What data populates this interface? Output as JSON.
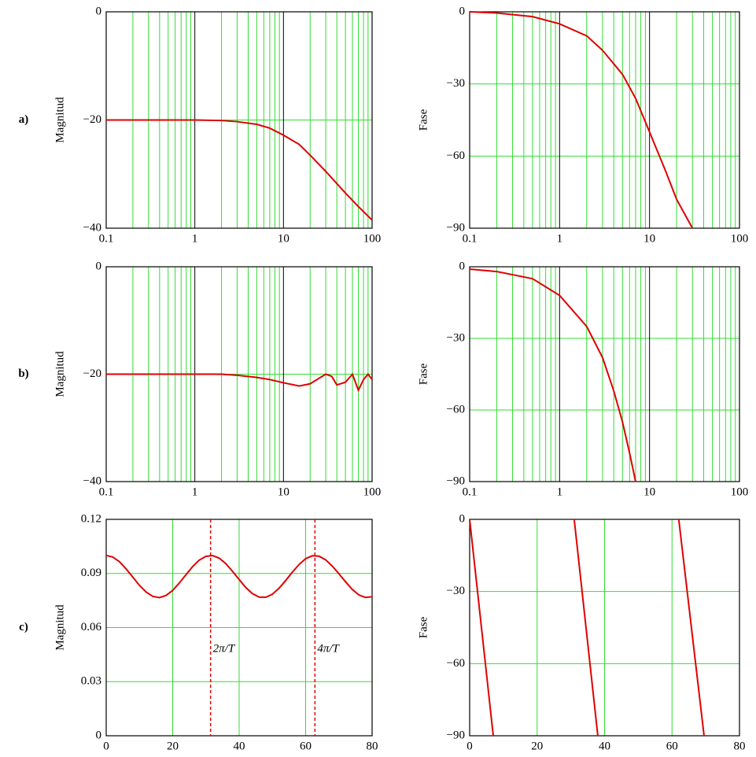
{
  "chart_data": [
    {
      "type": "line",
      "panel": "a)",
      "ylabel": "Magnitud",
      "xscale": "log",
      "minor_grid": true,
      "color": "#e00000",
      "xlim": [
        0.1,
        100
      ],
      "xticks": [
        0.1,
        1,
        10,
        100
      ],
      "ylim": [
        -40,
        0
      ],
      "yticks": [
        {
          "value": -40,
          "label": "−40"
        },
        {
          "value": -20,
          "label": "−20"
        },
        0
      ],
      "x": [
        0.1,
        0.2,
        0.5,
        1,
        2,
        3,
        5,
        7,
        10,
        15,
        20,
        30,
        50,
        70,
        100
      ],
      "values": [
        -20,
        -20,
        -20,
        -20,
        -20.1,
        -20.3,
        -20.8,
        -21.5,
        -22.8,
        -24.5,
        -26.5,
        -29.5,
        -33.5,
        -36,
        -38.5
      ]
    },
    {
      "type": "line",
      "ylabel": "Fase",
      "xscale": "log",
      "minor_grid": true,
      "color": "#e00000",
      "xlim": [
        0.1,
        100
      ],
      "xticks": [
        0.1,
        1,
        10,
        100
      ],
      "ylim": [
        -90,
        0
      ],
      "yticks": [
        {
          "value": -90,
          "label": "−90"
        },
        {
          "value": -60,
          "label": "−60"
        },
        {
          "value": -30,
          "label": "−30"
        },
        0
      ],
      "x": [
        0.1,
        0.2,
        0.5,
        1,
        2,
        3,
        5,
        7,
        10,
        15,
        20,
        30
      ],
      "values": [
        0,
        -0.5,
        -2,
        -5,
        -10,
        -16,
        -26,
        -36,
        -50,
        -66,
        -78,
        -90
      ]
    },
    {
      "type": "line",
      "panel": "b)",
      "ylabel": "Magnitud",
      "xscale": "log",
      "minor_grid": true,
      "color": "#e00000",
      "xlim": [
        0.1,
        100
      ],
      "xticks": [
        0.1,
        1,
        10,
        100
      ],
      "ylim": [
        -40,
        0
      ],
      "yticks": [
        {
          "value": -40,
          "label": "−40"
        },
        {
          "value": -20,
          "label": "−20"
        },
        0
      ],
      "x": [
        0.1,
        1,
        2,
        3,
        5,
        7,
        10,
        15,
        20,
        25,
        30,
        35,
        40,
        50,
        60,
        70,
        80,
        90,
        100
      ],
      "values": [
        -20,
        -20,
        -20,
        -20.2,
        -20.6,
        -21,
        -21.6,
        -22.2,
        -21.8,
        -20.8,
        -20,
        -20.4,
        -22,
        -21.5,
        -20,
        -23,
        -21,
        -20,
        -21
      ]
    },
    {
      "type": "line",
      "ylabel": "Fase",
      "xscale": "log",
      "minor_grid": true,
      "color": "#e00000",
      "xlim": [
        0.1,
        100
      ],
      "xticks": [
        0.1,
        1,
        10,
        100
      ],
      "ylim": [
        -90,
        0
      ],
      "yticks": [
        {
          "value": -90,
          "label": "−90"
        },
        {
          "value": -60,
          "label": "−60"
        },
        {
          "value": -30,
          "label": "−30"
        },
        0
      ],
      "x": [
        0.1,
        0.2,
        0.5,
        1,
        2,
        3,
        4,
        5,
        6,
        7
      ],
      "values": [
        -1,
        -2,
        -5,
        -12,
        -25,
        -38,
        -52,
        -65,
        -78,
        -90
      ]
    },
    {
      "type": "line",
      "panel": "c)",
      "ylabel": "Magnitud",
      "xscale": "linear",
      "color": "#e00000",
      "xlim": [
        0,
        80
      ],
      "xticks": [
        0,
        20,
        40,
        60,
        80
      ],
      "ylim": [
        0,
        0.12
      ],
      "yticks": [
        0,
        0.03,
        0.06,
        0.09,
        0.12
      ],
      "x": [
        0,
        2,
        4,
        6,
        8,
        10,
        12,
        14,
        16,
        18,
        20,
        22,
        24,
        26,
        28,
        30,
        32,
        34,
        36,
        38,
        40,
        42,
        44,
        46,
        48,
        50,
        52,
        54,
        56,
        58,
        60,
        62,
        64,
        66,
        68,
        70,
        72,
        74,
        76,
        78,
        80
      ],
      "values": [
        0.1,
        0.0991,
        0.0965,
        0.0925,
        0.088,
        0.0834,
        0.0797,
        0.0773,
        0.0766,
        0.0778,
        0.0806,
        0.0847,
        0.0893,
        0.0938,
        0.0974,
        0.0995,
        0.0999,
        0.0985,
        0.0954,
        0.0912,
        0.0866,
        0.0822,
        0.0788,
        0.0769,
        0.0768,
        0.0785,
        0.0818,
        0.0861,
        0.0907,
        0.0949,
        0.0982,
        0.0998,
        0.0996,
        0.0976,
        0.0941,
        0.0899,
        0.0854,
        0.0812,
        0.0781,
        0.0767,
        0.0771
      ],
      "markers": [
        {
          "x": 31.4,
          "label": "2π/T"
        },
        {
          "x": 62.8,
          "label": "4π/T"
        }
      ]
    },
    {
      "type": "line",
      "ylabel": "Fase",
      "xscale": "linear",
      "color": "#e00000",
      "xlim": [
        0,
        80
      ],
      "xticks": [
        0,
        20,
        40,
        60,
        80
      ],
      "ylim": [
        -90,
        0
      ],
      "yticks": [
        {
          "value": -90,
          "label": "−90"
        },
        {
          "value": -60,
          "label": "−60"
        },
        {
          "value": -30,
          "label": "−30"
        },
        0
      ],
      "x": [
        0,
        7,
        20,
        31,
        38,
        50,
        62,
        69.5
      ],
      "values": [
        0,
        -90,
        null,
        0,
        -90,
        null,
        0,
        -90
      ]
    }
  ]
}
